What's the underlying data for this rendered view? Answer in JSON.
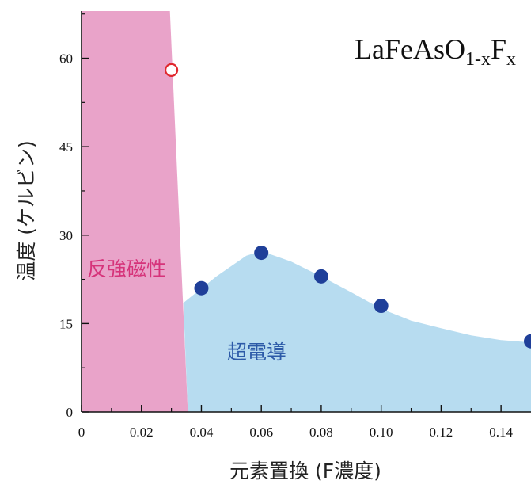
{
  "chart_data": {
    "type": "scatter",
    "title": "LaFeAsO",
    "title_parts": {
      "base": "LaFeAsO",
      "sub1": "1-x",
      "mid": "F",
      "sub2": "x"
    },
    "xlabel": "元素置換 (F濃度)",
    "ylabel": "温度 (ケルビン)",
    "xlim": [
      0,
      0.15
    ],
    "ylim": [
      0,
      68
    ],
    "xticks": [
      "0",
      "0.02",
      "0.04",
      "0.06",
      "0.08",
      "0.10",
      "0.12",
      "0.14"
    ],
    "xtick_values": [
      0,
      0.02,
      0.04,
      0.06,
      0.08,
      0.1,
      0.12,
      0.14
    ],
    "yticks": [
      "0",
      "15",
      "30",
      "45",
      "60"
    ],
    "ytick_values": [
      0,
      15,
      30,
      45,
      60
    ],
    "grid": false,
    "regions": [
      {
        "label": "反強磁性",
        "color": "#e9a3c9",
        "label_color": "#d6337a",
        "boundary": [
          [
            0,
            0
          ],
          [
            0,
            68
          ],
          [
            0.0295,
            68
          ],
          [
            0.0355,
            0
          ]
        ]
      },
      {
        "label": "超電導",
        "color": "#b7dcf0",
        "label_color": "#2c5aa8",
        "boundary": [
          [
            0.0355,
            0
          ],
          [
            0.034,
            18.5
          ],
          [
            0.045,
            23
          ],
          [
            0.055,
            26.5
          ],
          [
            0.06,
            27.3
          ],
          [
            0.07,
            25.5
          ],
          [
            0.08,
            23
          ],
          [
            0.09,
            20.3
          ],
          [
            0.1,
            17.5
          ],
          [
            0.11,
            15.5
          ],
          [
            0.12,
            14.2
          ],
          [
            0.13,
            13
          ],
          [
            0.14,
            12.2
          ],
          [
            0.15,
            11.8
          ],
          [
            0.15,
            0
          ]
        ]
      }
    ],
    "series": [
      {
        "marker": "filled-circle",
        "color": "#1f3f99",
        "x": [
          0.04,
          0.06,
          0.08,
          0.1,
          0.15
        ],
        "y": [
          21,
          27,
          23,
          18,
          12
        ]
      },
      {
        "marker": "open-circle",
        "color": "#e0282e",
        "x": [
          0.03
        ],
        "y": [
          58
        ]
      }
    ]
  }
}
